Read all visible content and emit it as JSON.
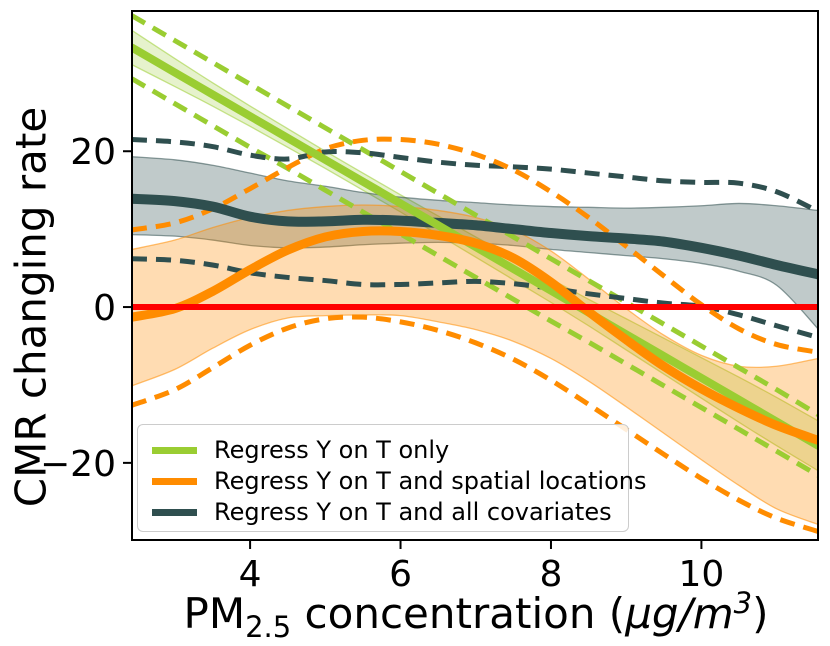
{
  "figure": {
    "ylabel": "CMR changing rate",
    "xlabel_parts": {
      "prefix": "PM",
      "sub": "2.5",
      "mid": " concentration (",
      "unit_italic": "μg/m",
      "sup": "3",
      "close": ")"
    }
  },
  "chart_data": {
    "type": "line",
    "title": "",
    "xlabel": "PM2.5 concentration (μg/m³)",
    "ylabel": "CMR changing rate",
    "xlim": [
      2.43,
      11.55
    ],
    "ylim": [
      -29.9,
      38.0
    ],
    "xticks": [
      4,
      6,
      8,
      10
    ],
    "yticks": [
      20,
      0,
      -20
    ],
    "grid": false,
    "legend_position": "lower left",
    "reference_line": {
      "y": 0,
      "color": "#FF0000",
      "width": 6
    },
    "x": [
      2.43,
      3,
      3.5,
      4,
      4.5,
      5,
      5.5,
      6,
      6.5,
      7,
      7.5,
      8,
      8.5,
      9,
      9.5,
      10,
      10.5,
      11,
      11.55
    ],
    "series": [
      {
        "name": "Regress Y on T only",
        "color": "#9ACD32",
        "line_width": 8,
        "band_opacity": 0.25,
        "fit": [
          33.3,
          30.1,
          27.3,
          24.5,
          21.7,
          18.9,
          16.1,
          13.3,
          10.5,
          7.7,
          4.9,
          2.1,
          -0.7,
          -3.5,
          -6.3,
          -9.1,
          -11.9,
          -14.7,
          -17.8
        ],
        "ci_upper_dashed": [
          37.4,
          34.2,
          31.4,
          28.6,
          25.8,
          23.0,
          20.2,
          17.4,
          14.6,
          11.8,
          9.0,
          6.2,
          3.4,
          0.6,
          -2.2,
          -5.0,
          -7.8,
          -10.6,
          -13.8
        ],
        "ci_lower_dashed": [
          29.3,
          26.1,
          23.3,
          20.5,
          17.8,
          15.0,
          12.2,
          9.4,
          6.6,
          3.8,
          1.0,
          -1.8,
          -4.5,
          -7.3,
          -10.1,
          -12.9,
          -15.7,
          -18.5,
          -21.6
        ],
        "band_upper": [
          35.5,
          31.9,
          28.8,
          25.8,
          22.9,
          20.0,
          17.2,
          14.4,
          11.7,
          9.0,
          6.3,
          3.6,
          1.0,
          -1.5,
          -4.0,
          -6.5,
          -9.0,
          -11.6,
          -14.6
        ],
        "band_lower": [
          31.1,
          28.3,
          25.8,
          23.2,
          20.5,
          17.8,
          15.0,
          12.2,
          9.3,
          6.4,
          3.5,
          0.6,
          -2.4,
          -5.5,
          -8.6,
          -11.7,
          -14.8,
          -17.8,
          -21.0
        ]
      },
      {
        "name": "Regress Y on T and spatial locations",
        "color": "#FF8C00",
        "line_width": 9,
        "band_opacity": 0.3,
        "fit": [
          -1.3,
          -0.2,
          2.0,
          4.8,
          7.3,
          9.0,
          9.7,
          9.7,
          9.2,
          8.2,
          6.3,
          3.2,
          -0.6,
          -4.2,
          -7.6,
          -10.5,
          -13.0,
          -15.2,
          -17.1
        ],
        "ci_upper_dashed": [
          9.9,
          10.8,
          12.6,
          15.2,
          17.9,
          20.3,
          21.4,
          21.5,
          20.9,
          19.6,
          17.6,
          14.8,
          11.5,
          7.8,
          4.0,
          0.3,
          -2.8,
          -4.8,
          -5.8
        ],
        "ci_lower_dashed": [
          -12.6,
          -10.6,
          -7.8,
          -4.9,
          -2.7,
          -1.5,
          -1.3,
          -1.9,
          -3.0,
          -4.6,
          -6.7,
          -9.4,
          -12.5,
          -15.7,
          -18.9,
          -22.0,
          -24.8,
          -27.1,
          -28.8
        ],
        "band_upper": [
          7.4,
          8.6,
          10.2,
          11.5,
          12.4,
          12.9,
          13.1,
          12.9,
          12.4,
          11.5,
          9.9,
          7.2,
          3.6,
          -0.2,
          -3.6,
          -6.2,
          -7.6,
          -7.6,
          -6.6
        ],
        "band_lower": [
          -10.1,
          -8.0,
          -5.3,
          -2.9,
          -1.4,
          -1.1,
          -1.0,
          -1.1,
          -1.9,
          -2.9,
          -4.4,
          -6.6,
          -9.5,
          -12.8,
          -16.2,
          -19.6,
          -22.9,
          -25.9,
          -27.9
        ]
      },
      {
        "name": "Regress Y on T and all covariates",
        "color": "#2F4F4F",
        "line_width": 10,
        "band_opacity": 0.3,
        "fit": [
          13.9,
          13.6,
          12.9,
          11.6,
          11.0,
          11.0,
          11.2,
          11.1,
          10.8,
          10.5,
          10.0,
          9.5,
          9.1,
          8.8,
          8.4,
          7.6,
          6.6,
          5.4,
          4.2
        ],
        "ci_upper_dashed": [
          21.5,
          21.2,
          20.6,
          19.5,
          19.0,
          19.9,
          19.8,
          19.2,
          18.6,
          18.2,
          18.0,
          17.7,
          17.2,
          16.7,
          16.2,
          16.0,
          15.9,
          14.8,
          12.3
        ],
        "ci_lower_dashed": [
          6.2,
          6.0,
          5.4,
          4.4,
          3.8,
          3.4,
          2.9,
          2.9,
          3.1,
          3.3,
          3.0,
          2.4,
          1.7,
          1.1,
          0.5,
          0.1,
          -1.0,
          -2.4,
          -3.9
        ],
        "band_upper": [
          19.3,
          18.9,
          18.2,
          17.2,
          16.2,
          15.5,
          14.7,
          14.1,
          13.7,
          13.4,
          13.1,
          12.9,
          12.8,
          12.7,
          12.8,
          13.0,
          13.3,
          13.0,
          12.4
        ],
        "band_lower": [
          9.3,
          9.1,
          8.6,
          7.9,
          7.6,
          7.7,
          8.0,
          8.2,
          8.3,
          8.2,
          7.9,
          7.4,
          7.0,
          6.6,
          6.2,
          5.6,
          4.6,
          2.8,
          -2.8
        ]
      }
    ]
  }
}
